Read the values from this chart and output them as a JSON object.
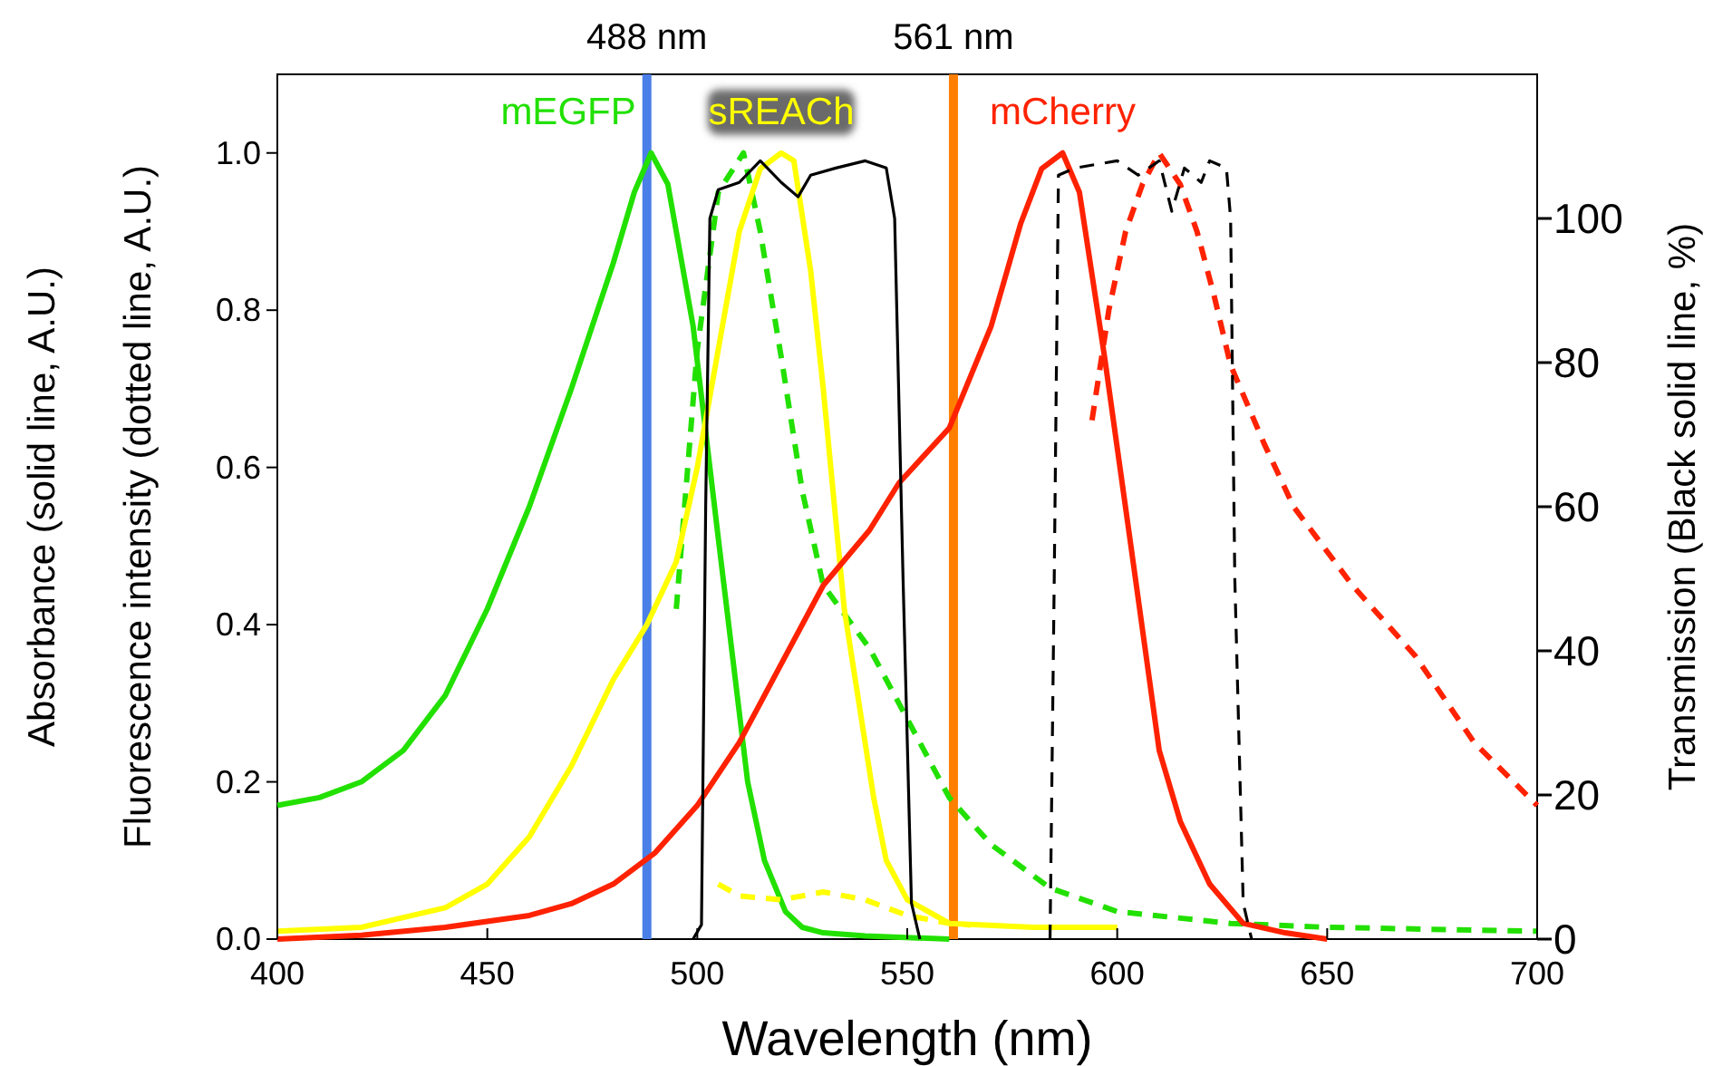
{
  "chart_data": {
    "type": "line",
    "xlabel": "Wavelength (nm)",
    "ylabel": "Absorbance (solid line, A.U.)\nFluorescence intensity (dotted line, A.U.)",
    "y2label": "Transmission (Black solid line, %)",
    "xlim": [
      400,
      700
    ],
    "xticks": [
      400,
      450,
      500,
      550,
      600,
      650,
      700
    ],
    "ylim": [
      0,
      1.1
    ],
    "yticks": [
      {
        "value": 0,
        "label": "0.0"
      },
      {
        "value": 0.2,
        "label": "0.2"
      },
      {
        "value": 0.4,
        "label": "0.4"
      },
      {
        "value": 0.6,
        "label": "0.6"
      },
      {
        "value": 0.8,
        "label": "0.8"
      },
      {
        "value": 1,
        "label": "1.0"
      }
    ],
    "y2lim": [
      0,
      120
    ],
    "y2ticks": [
      0,
      20,
      40,
      60,
      80,
      100
    ],
    "grid": false,
    "marker": "none",
    "ref_lines": [
      {
        "axis": "x",
        "value": 488,
        "label": "488 nm",
        "color": "#4a7fe8"
      },
      {
        "axis": "x",
        "value": 561,
        "label": "561 nm",
        "color": "#ff8000"
      }
    ],
    "series": [
      {
        "name": "mEGFP",
        "color": "#22e000",
        "line_style": "solid",
        "x": [
          400,
          410,
          420,
          430,
          440,
          450,
          460,
          470,
          480,
          485,
          489,
          493,
          499,
          505,
          512,
          516,
          521,
          525,
          530,
          540,
          560
        ],
        "values": [
          0.17,
          0.18,
          0.2,
          0.24,
          0.31,
          0.42,
          0.55,
          0.7,
          0.86,
          0.95,
          1.0,
          0.96,
          0.78,
          0.51,
          0.2,
          0.1,
          0.035,
          0.015,
          0.008,
          0.004,
          0.0
        ]
      },
      {
        "color": "#22e000",
        "line_style": "dashed",
        "x": [
          495,
          500,
          505,
          511,
          515,
          520,
          525,
          530,
          541,
          550,
          560,
          570,
          584,
          600,
          627,
          650,
          700
        ],
        "values": [
          0.42,
          0.75,
          0.95,
          1.0,
          0.9,
          0.74,
          0.57,
          0.45,
          0.37,
          0.28,
          0.18,
          0.12,
          0.065,
          0.035,
          0.02,
          0.015,
          0.01
        ]
      },
      {
        "name": "sREACh",
        "color": "#ffff00",
        "line_style": "solid",
        "x": [
          400,
          420,
          440,
          450,
          460,
          470,
          480,
          488,
          495,
          500,
          505,
          510,
          515,
          520,
          523,
          527,
          530,
          535,
          542,
          545,
          550,
          560,
          580,
          600
        ],
        "values": [
          0.01,
          0.015,
          0.04,
          0.07,
          0.13,
          0.22,
          0.33,
          0.4,
          0.48,
          0.6,
          0.75,
          0.9,
          0.98,
          1.0,
          0.99,
          0.85,
          0.7,
          0.42,
          0.18,
          0.1,
          0.05,
          0.02,
          0.015,
          0.015
        ]
      },
      {
        "color": "#ffff00",
        "line_style": "dashed",
        "x": [
          505,
          510,
          520,
          530,
          540,
          550,
          560,
          565
        ],
        "values": [
          0.07,
          0.055,
          0.05,
          0.06,
          0.05,
          0.03,
          0.02,
          0.018
        ]
      },
      {
        "name": "mCherry",
        "color": "#ff2200",
        "line_style": "solid",
        "x": [
          400,
          420,
          440,
          460,
          470,
          480,
          490,
          500,
          510,
          520,
          530,
          541,
          548,
          560,
          570,
          577,
          582,
          587,
          591,
          597,
          603,
          610,
          615,
          622,
          630,
          640,
          650
        ],
        "values": [
          0.0,
          0.005,
          0.015,
          0.03,
          0.045,
          0.07,
          0.11,
          0.17,
          0.25,
          0.35,
          0.45,
          0.52,
          0.58,
          0.65,
          0.78,
          0.91,
          0.98,
          1.0,
          0.95,
          0.74,
          0.51,
          0.24,
          0.15,
          0.07,
          0.02,
          0.008,
          0.0
        ]
      },
      {
        "color": "#ff2200",
        "line_style": "dashed",
        "x": [
          594,
          598,
          602,
          606,
          610,
          615,
          619,
          623,
          627,
          635,
          642,
          656,
          671,
          685,
          700
        ],
        "values": [
          0.66,
          0.8,
          0.9,
          0.96,
          1.0,
          0.96,
          0.9,
          0.82,
          0.73,
          0.63,
          0.55,
          0.45,
          0.36,
          0.25,
          0.17
        ]
      },
      {
        "color": "#000000",
        "line_style": "solid",
        "axis": "y2",
        "x": [
          499,
          501,
          502,
          503,
          505,
          510,
          515,
          520,
          524,
          527,
          533,
          540,
          545,
          547,
          549,
          551,
          553
        ],
        "values": [
          0,
          2,
          60,
          100,
          104,
          105,
          108,
          105,
          103,
          106,
          107,
          108,
          107,
          100,
          50,
          5,
          0
        ]
      },
      {
        "color": "#000000",
        "line_style": "dashed",
        "axis": "y2",
        "x": [
          584,
          585,
          586,
          590,
          600,
          605,
          610,
          613,
          616,
          620,
          622,
          626,
          627,
          628,
          630,
          632
        ],
        "values": [
          0,
          50,
          106,
          107,
          108,
          106,
          108,
          101,
          107,
          105,
          108,
          107,
          100,
          50,
          5,
          0
        ]
      }
    ]
  }
}
